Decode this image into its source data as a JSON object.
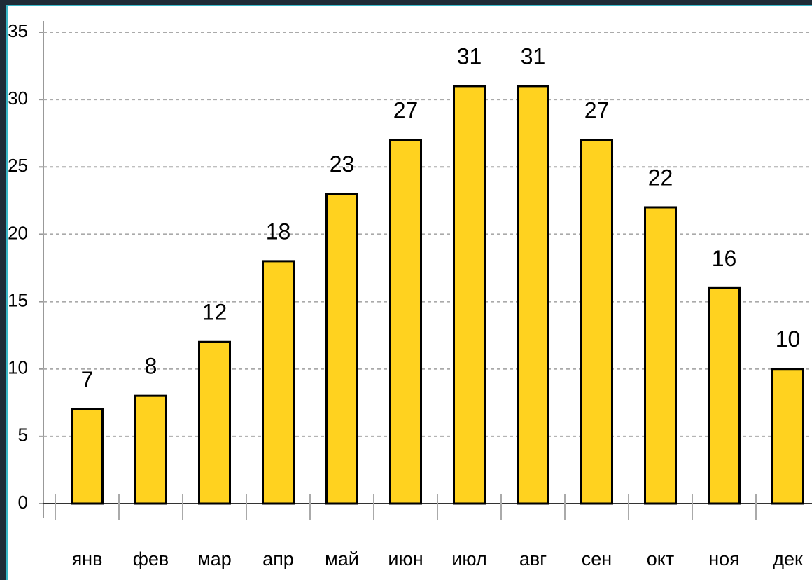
{
  "chart_data": {
    "type": "bar",
    "categories": [
      "янв",
      "фев",
      "мар",
      "апр",
      "май",
      "июн",
      "июл",
      "авг",
      "сен",
      "окт",
      "ноя",
      "дек"
    ],
    "values": [
      7,
      8,
      12,
      18,
      23,
      27,
      31,
      31,
      27,
      22,
      16,
      10
    ],
    "color": "#ffd21f",
    "ylim": [
      0,
      35
    ],
    "yticks": [
      0,
      5,
      10,
      15,
      20,
      25,
      30,
      35
    ],
    "grid": true
  }
}
